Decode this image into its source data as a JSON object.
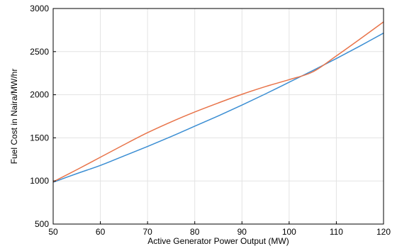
{
  "chart_data": {
    "type": "line",
    "title": "",
    "xlabel": "Active Generator Power Output (MW)",
    "ylabel": "Fuel Cost in Naira/MW/hr",
    "xlim": [
      50,
      120
    ],
    "ylim": [
      500,
      3000
    ],
    "x_ticks": [
      50,
      60,
      70,
      80,
      90,
      100,
      110,
      120
    ],
    "y_ticks": [
      500,
      1000,
      1500,
      2000,
      2500,
      3000
    ],
    "grid": true,
    "legend": "none",
    "series": [
      {
        "color": "#3b8ed3",
        "x": [
          50,
          55,
          60,
          65,
          70,
          75,
          80,
          85,
          90,
          95,
          100,
          105,
          110,
          115,
          120
        ],
        "values": [
          985,
          1085,
          1180,
          1290,
          1400,
          1515,
          1635,
          1755,
          1880,
          2010,
          2145,
          2280,
          2420,
          2565,
          2715
        ]
      },
      {
        "color": "#e8744a",
        "x": [
          50,
          55,
          60,
          65,
          70,
          75,
          80,
          85,
          90,
          95,
          100,
          105,
          110,
          115,
          120
        ],
        "values": [
          990,
          1130,
          1275,
          1420,
          1560,
          1685,
          1800,
          1905,
          2005,
          2095,
          2175,
          2265,
          2450,
          2645,
          2845
        ]
      }
    ]
  }
}
